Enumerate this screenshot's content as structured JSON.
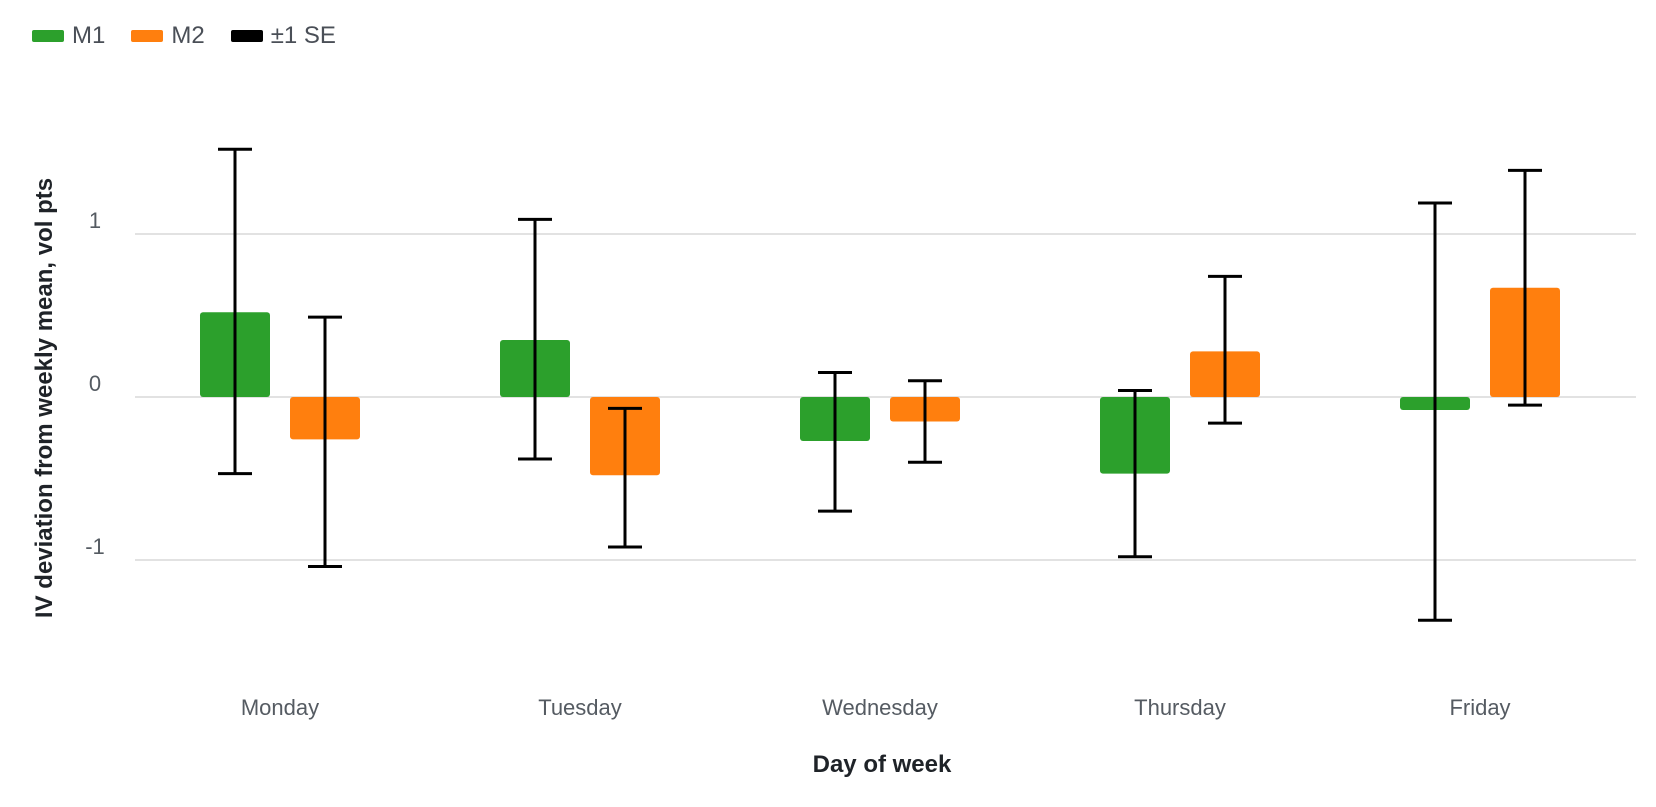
{
  "legend": {
    "items": [
      {
        "label": "M1",
        "color": "#2ca02c"
      },
      {
        "label": "M2",
        "color": "#ff7f0e"
      },
      {
        "label": "±1 SE",
        "color": "#000000"
      }
    ]
  },
  "chart_data": {
    "type": "bar",
    "title": "",
    "xlabel": "Day of week",
    "ylabel": "IV deviation from weekly mean, vol pts",
    "categories": [
      "Monday",
      "Tuesday",
      "Wednesday",
      "Thursday",
      "Friday"
    ],
    "ylim": [
      -1.75,
      1.75
    ],
    "yticks": [
      -1,
      0,
      1
    ],
    "grid": true,
    "legend_position": "top-left",
    "series": [
      {
        "name": "M1",
        "color": "#2ca02c",
        "values": [
          0.52,
          0.35,
          -0.27,
          -0.47,
          -0.08
        ],
        "error_low": [
          -0.47,
          -0.38,
          -0.7,
          -0.98,
          -1.37
        ],
        "error_high": [
          1.52,
          1.09,
          0.15,
          0.04,
          1.19
        ]
      },
      {
        "name": "M2",
        "color": "#ff7f0e",
        "values": [
          -0.26,
          -0.48,
          -0.15,
          0.28,
          0.67
        ],
        "error_low": [
          -1.04,
          -0.92,
          -0.4,
          -0.16,
          -0.05
        ],
        "error_high": [
          0.49,
          -0.07,
          0.1,
          0.74,
          1.39
        ]
      }
    ]
  }
}
